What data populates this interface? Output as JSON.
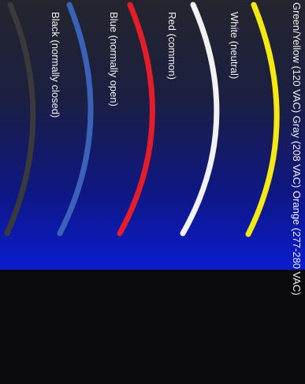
{
  "wires": [
    {
      "id": "green-yellow",
      "label": "Green/Yellow (120 VAC) Gray (208 VAC) Orange (277-280 VAC)",
      "color": "#f6e90f"
    },
    {
      "id": "white",
      "label": "White (neutral)",
      "color": "#f2f2f2"
    },
    {
      "id": "red",
      "label": "Red (common)",
      "color": "#e51d2a"
    },
    {
      "id": "blue",
      "label": "Blue (normally open)",
      "color": "#3a62b8"
    },
    {
      "id": "black",
      "label": "Black (normally closed)",
      "color": "#3a3a3a"
    }
  ]
}
